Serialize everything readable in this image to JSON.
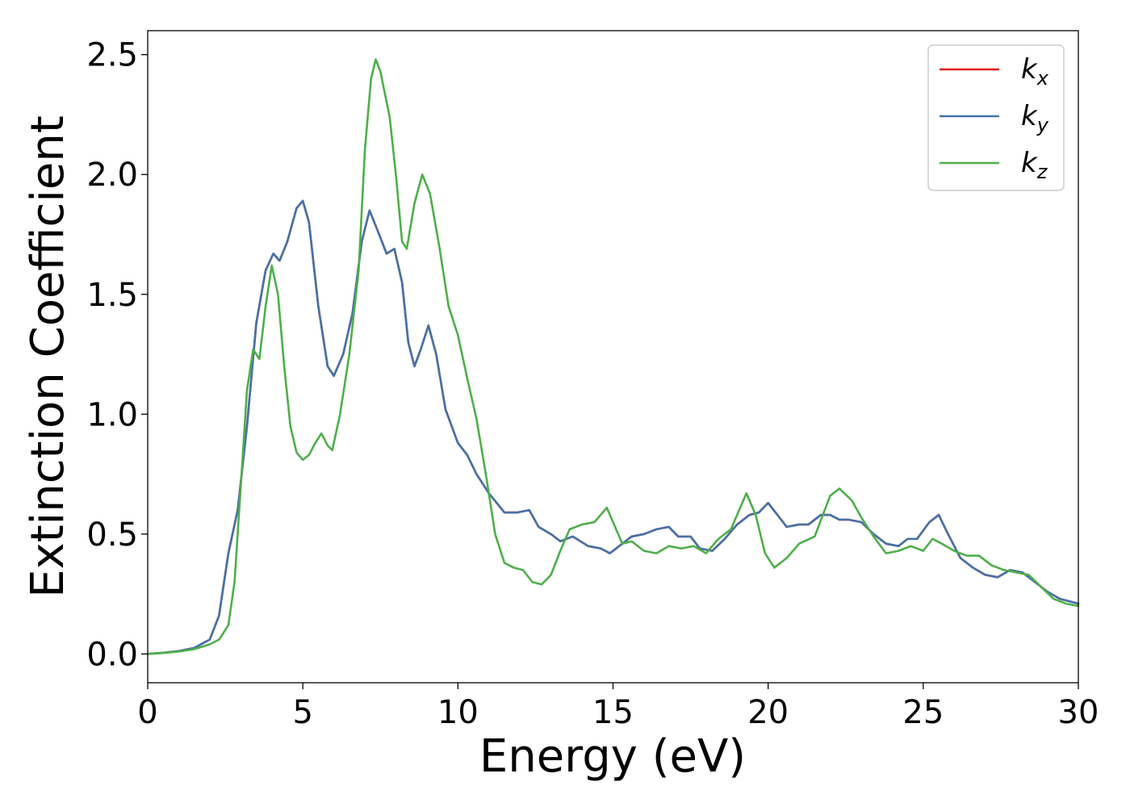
{
  "chart_data": {
    "type": "line",
    "title": "",
    "xlabel": "Energy (eV)",
    "ylabel": "Extinction Coefficient",
    "xlim": [
      0,
      30
    ],
    "ylim": [
      -0.12,
      2.6
    ],
    "xticks": [
      0,
      5,
      10,
      15,
      20,
      25,
      30
    ],
    "yticks": [
      0.0,
      0.5,
      1.0,
      1.5,
      2.0,
      2.5
    ],
    "xtick_labels": [
      "0",
      "5",
      "10",
      "15",
      "20",
      "25",
      "30"
    ],
    "ytick_labels": [
      "0.0",
      "0.5",
      "1.0",
      "1.5",
      "2.0",
      "2.5"
    ],
    "grid": false,
    "legend_position": "top-right",
    "legend": [
      {
        "base": "k",
        "sub": "x"
      },
      {
        "base": "k",
        "sub": "y"
      },
      {
        "base": "k",
        "sub": "z"
      }
    ],
    "series": [
      {
        "name": "kx",
        "color": "#e41a1c",
        "points": [
          [
            0,
            0
          ],
          [
            0.5,
            0.005
          ],
          [
            1,
            0.012
          ],
          [
            1.5,
            0.025
          ],
          [
            2,
            0.06
          ],
          [
            2.3,
            0.16
          ],
          [
            2.6,
            0.42
          ],
          [
            2.9,
            0.6
          ],
          [
            3.2,
            0.95
          ],
          [
            3.5,
            1.38
          ],
          [
            3.8,
            1.6
          ],
          [
            4.05,
            1.67
          ],
          [
            4.25,
            1.64
          ],
          [
            4.5,
            1.72
          ],
          [
            4.8,
            1.86
          ],
          [
            5.0,
            1.89
          ],
          [
            5.2,
            1.8
          ],
          [
            5.5,
            1.45
          ],
          [
            5.8,
            1.2
          ],
          [
            6.0,
            1.16
          ],
          [
            6.3,
            1.25
          ],
          [
            6.6,
            1.42
          ],
          [
            6.9,
            1.72
          ],
          [
            7.15,
            1.85
          ],
          [
            7.4,
            1.77
          ],
          [
            7.7,
            1.67
          ],
          [
            7.95,
            1.69
          ],
          [
            8.2,
            1.55
          ],
          [
            8.4,
            1.3
          ],
          [
            8.6,
            1.2
          ],
          [
            8.8,
            1.27
          ],
          [
            9.05,
            1.37
          ],
          [
            9.3,
            1.25
          ],
          [
            9.6,
            1.02
          ],
          [
            10.0,
            0.88
          ],
          [
            10.3,
            0.83
          ],
          [
            10.6,
            0.75
          ],
          [
            11.0,
            0.67
          ],
          [
            11.5,
            0.59
          ],
          [
            11.9,
            0.59
          ],
          [
            12.3,
            0.6
          ],
          [
            12.6,
            0.53
          ],
          [
            13.0,
            0.5
          ],
          [
            13.3,
            0.47
          ],
          [
            13.7,
            0.49
          ],
          [
            14.2,
            0.45
          ],
          [
            14.6,
            0.44
          ],
          [
            14.9,
            0.42
          ],
          [
            15.3,
            0.46
          ],
          [
            15.6,
            0.49
          ],
          [
            16.0,
            0.5
          ],
          [
            16.4,
            0.52
          ],
          [
            16.8,
            0.53
          ],
          [
            17.1,
            0.49
          ],
          [
            17.5,
            0.49
          ],
          [
            17.8,
            0.44
          ],
          [
            18.2,
            0.43
          ],
          [
            18.6,
            0.48
          ],
          [
            19.0,
            0.54
          ],
          [
            19.4,
            0.58
          ],
          [
            19.7,
            0.59
          ],
          [
            20.0,
            0.63
          ],
          [
            20.3,
            0.58
          ],
          [
            20.6,
            0.53
          ],
          [
            21.0,
            0.54
          ],
          [
            21.3,
            0.54
          ],
          [
            21.7,
            0.58
          ],
          [
            22.0,
            0.58
          ],
          [
            22.3,
            0.56
          ],
          [
            22.6,
            0.56
          ],
          [
            23.0,
            0.55
          ],
          [
            23.4,
            0.5
          ],
          [
            23.8,
            0.46
          ],
          [
            24.2,
            0.45
          ],
          [
            24.5,
            0.48
          ],
          [
            24.8,
            0.48
          ],
          [
            25.2,
            0.55
          ],
          [
            25.5,
            0.58
          ],
          [
            25.8,
            0.5
          ],
          [
            26.2,
            0.4
          ],
          [
            26.6,
            0.36
          ],
          [
            27.0,
            0.33
          ],
          [
            27.4,
            0.32
          ],
          [
            27.8,
            0.35
          ],
          [
            28.2,
            0.34
          ],
          [
            28.6,
            0.3
          ],
          [
            29.0,
            0.26
          ],
          [
            29.4,
            0.23
          ],
          [
            29.7,
            0.22
          ],
          [
            30.0,
            0.21
          ]
        ]
      },
      {
        "name": "ky",
        "color": "#4472a8",
        "points": [
          [
            0,
            0
          ],
          [
            0.5,
            0.005
          ],
          [
            1,
            0.012
          ],
          [
            1.5,
            0.025
          ],
          [
            2,
            0.06
          ],
          [
            2.3,
            0.16
          ],
          [
            2.6,
            0.42
          ],
          [
            2.9,
            0.6
          ],
          [
            3.2,
            0.95
          ],
          [
            3.5,
            1.38
          ],
          [
            3.8,
            1.6
          ],
          [
            4.05,
            1.67
          ],
          [
            4.25,
            1.64
          ],
          [
            4.5,
            1.72
          ],
          [
            4.8,
            1.86
          ],
          [
            5.0,
            1.89
          ],
          [
            5.2,
            1.8
          ],
          [
            5.5,
            1.45
          ],
          [
            5.8,
            1.2
          ],
          [
            6.0,
            1.16
          ],
          [
            6.3,
            1.25
          ],
          [
            6.6,
            1.42
          ],
          [
            6.9,
            1.72
          ],
          [
            7.15,
            1.85
          ],
          [
            7.4,
            1.77
          ],
          [
            7.7,
            1.67
          ],
          [
            7.95,
            1.69
          ],
          [
            8.2,
            1.55
          ],
          [
            8.4,
            1.3
          ],
          [
            8.6,
            1.2
          ],
          [
            8.8,
            1.27
          ],
          [
            9.05,
            1.37
          ],
          [
            9.3,
            1.25
          ],
          [
            9.6,
            1.02
          ],
          [
            10.0,
            0.88
          ],
          [
            10.3,
            0.83
          ],
          [
            10.6,
            0.75
          ],
          [
            11.0,
            0.67
          ],
          [
            11.5,
            0.59
          ],
          [
            11.9,
            0.59
          ],
          [
            12.3,
            0.6
          ],
          [
            12.6,
            0.53
          ],
          [
            13.0,
            0.5
          ],
          [
            13.3,
            0.47
          ],
          [
            13.7,
            0.49
          ],
          [
            14.2,
            0.45
          ],
          [
            14.6,
            0.44
          ],
          [
            14.9,
            0.42
          ],
          [
            15.3,
            0.46
          ],
          [
            15.6,
            0.49
          ],
          [
            16.0,
            0.5
          ],
          [
            16.4,
            0.52
          ],
          [
            16.8,
            0.53
          ],
          [
            17.1,
            0.49
          ],
          [
            17.5,
            0.49
          ],
          [
            17.8,
            0.44
          ],
          [
            18.2,
            0.43
          ],
          [
            18.6,
            0.48
          ],
          [
            19.0,
            0.54
          ],
          [
            19.4,
            0.58
          ],
          [
            19.7,
            0.59
          ],
          [
            20.0,
            0.63
          ],
          [
            20.3,
            0.58
          ],
          [
            20.6,
            0.53
          ],
          [
            21.0,
            0.54
          ],
          [
            21.3,
            0.54
          ],
          [
            21.7,
            0.58
          ],
          [
            22.0,
            0.58
          ],
          [
            22.3,
            0.56
          ],
          [
            22.6,
            0.56
          ],
          [
            23.0,
            0.55
          ],
          [
            23.4,
            0.5
          ],
          [
            23.8,
            0.46
          ],
          [
            24.2,
            0.45
          ],
          [
            24.5,
            0.48
          ],
          [
            24.8,
            0.48
          ],
          [
            25.2,
            0.55
          ],
          [
            25.5,
            0.58
          ],
          [
            25.8,
            0.5
          ],
          [
            26.2,
            0.4
          ],
          [
            26.6,
            0.36
          ],
          [
            27.0,
            0.33
          ],
          [
            27.4,
            0.32
          ],
          [
            27.8,
            0.35
          ],
          [
            28.2,
            0.34
          ],
          [
            28.6,
            0.3
          ],
          [
            29.0,
            0.26
          ],
          [
            29.4,
            0.23
          ],
          [
            29.7,
            0.22
          ],
          [
            30.0,
            0.21
          ]
        ]
      },
      {
        "name": "kz",
        "color": "#4daf4a",
        "points": [
          [
            0,
            0
          ],
          [
            0.5,
            0.004
          ],
          [
            1,
            0.01
          ],
          [
            1.5,
            0.02
          ],
          [
            2,
            0.04
          ],
          [
            2.3,
            0.06
          ],
          [
            2.6,
            0.12
          ],
          [
            2.8,
            0.3
          ],
          [
            3.0,
            0.7
          ],
          [
            3.2,
            1.1
          ],
          [
            3.4,
            1.27
          ],
          [
            3.6,
            1.23
          ],
          [
            3.8,
            1.45
          ],
          [
            4.0,
            1.62
          ],
          [
            4.2,
            1.5
          ],
          [
            4.4,
            1.2
          ],
          [
            4.6,
            0.95
          ],
          [
            4.8,
            0.84
          ],
          [
            5.0,
            0.81
          ],
          [
            5.2,
            0.83
          ],
          [
            5.4,
            0.88
          ],
          [
            5.6,
            0.92
          ],
          [
            5.8,
            0.87
          ],
          [
            5.95,
            0.85
          ],
          [
            6.2,
            1.0
          ],
          [
            6.5,
            1.25
          ],
          [
            6.8,
            1.6
          ],
          [
            7.0,
            2.1
          ],
          [
            7.2,
            2.4
          ],
          [
            7.35,
            2.48
          ],
          [
            7.5,
            2.43
          ],
          [
            7.8,
            2.24
          ],
          [
            8.0,
            2.0
          ],
          [
            8.2,
            1.72
          ],
          [
            8.35,
            1.69
          ],
          [
            8.6,
            1.88
          ],
          [
            8.85,
            2.0
          ],
          [
            9.1,
            1.92
          ],
          [
            9.4,
            1.7
          ],
          [
            9.7,
            1.45
          ],
          [
            10.0,
            1.33
          ],
          [
            10.3,
            1.15
          ],
          [
            10.6,
            0.98
          ],
          [
            10.9,
            0.75
          ],
          [
            11.2,
            0.5
          ],
          [
            11.5,
            0.38
          ],
          [
            11.8,
            0.36
          ],
          [
            12.1,
            0.35
          ],
          [
            12.4,
            0.3
          ],
          [
            12.7,
            0.29
          ],
          [
            13.0,
            0.33
          ],
          [
            13.3,
            0.43
          ],
          [
            13.6,
            0.52
          ],
          [
            14.0,
            0.54
          ],
          [
            14.4,
            0.55
          ],
          [
            14.8,
            0.61
          ],
          [
            15.0,
            0.55
          ],
          [
            15.3,
            0.46
          ],
          [
            15.6,
            0.47
          ],
          [
            16.0,
            0.43
          ],
          [
            16.4,
            0.42
          ],
          [
            16.8,
            0.45
          ],
          [
            17.2,
            0.44
          ],
          [
            17.6,
            0.45
          ],
          [
            18.0,
            0.42
          ],
          [
            18.4,
            0.48
          ],
          [
            18.8,
            0.52
          ],
          [
            19.3,
            0.67
          ],
          [
            19.6,
            0.58
          ],
          [
            19.9,
            0.42
          ],
          [
            20.2,
            0.36
          ],
          [
            20.6,
            0.4
          ],
          [
            21.0,
            0.46
          ],
          [
            21.5,
            0.49
          ],
          [
            22.0,
            0.66
          ],
          [
            22.3,
            0.69
          ],
          [
            22.7,
            0.64
          ],
          [
            23.0,
            0.57
          ],
          [
            23.4,
            0.49
          ],
          [
            23.8,
            0.42
          ],
          [
            24.2,
            0.43
          ],
          [
            24.6,
            0.45
          ],
          [
            25.0,
            0.43
          ],
          [
            25.3,
            0.48
          ],
          [
            25.6,
            0.46
          ],
          [
            26.0,
            0.43
          ],
          [
            26.4,
            0.41
          ],
          [
            26.8,
            0.41
          ],
          [
            27.2,
            0.37
          ],
          [
            27.6,
            0.35
          ],
          [
            28.0,
            0.34
          ],
          [
            28.4,
            0.33
          ],
          [
            28.8,
            0.28
          ],
          [
            29.2,
            0.23
          ],
          [
            29.6,
            0.21
          ],
          [
            30.0,
            0.2
          ]
        ]
      }
    ]
  }
}
